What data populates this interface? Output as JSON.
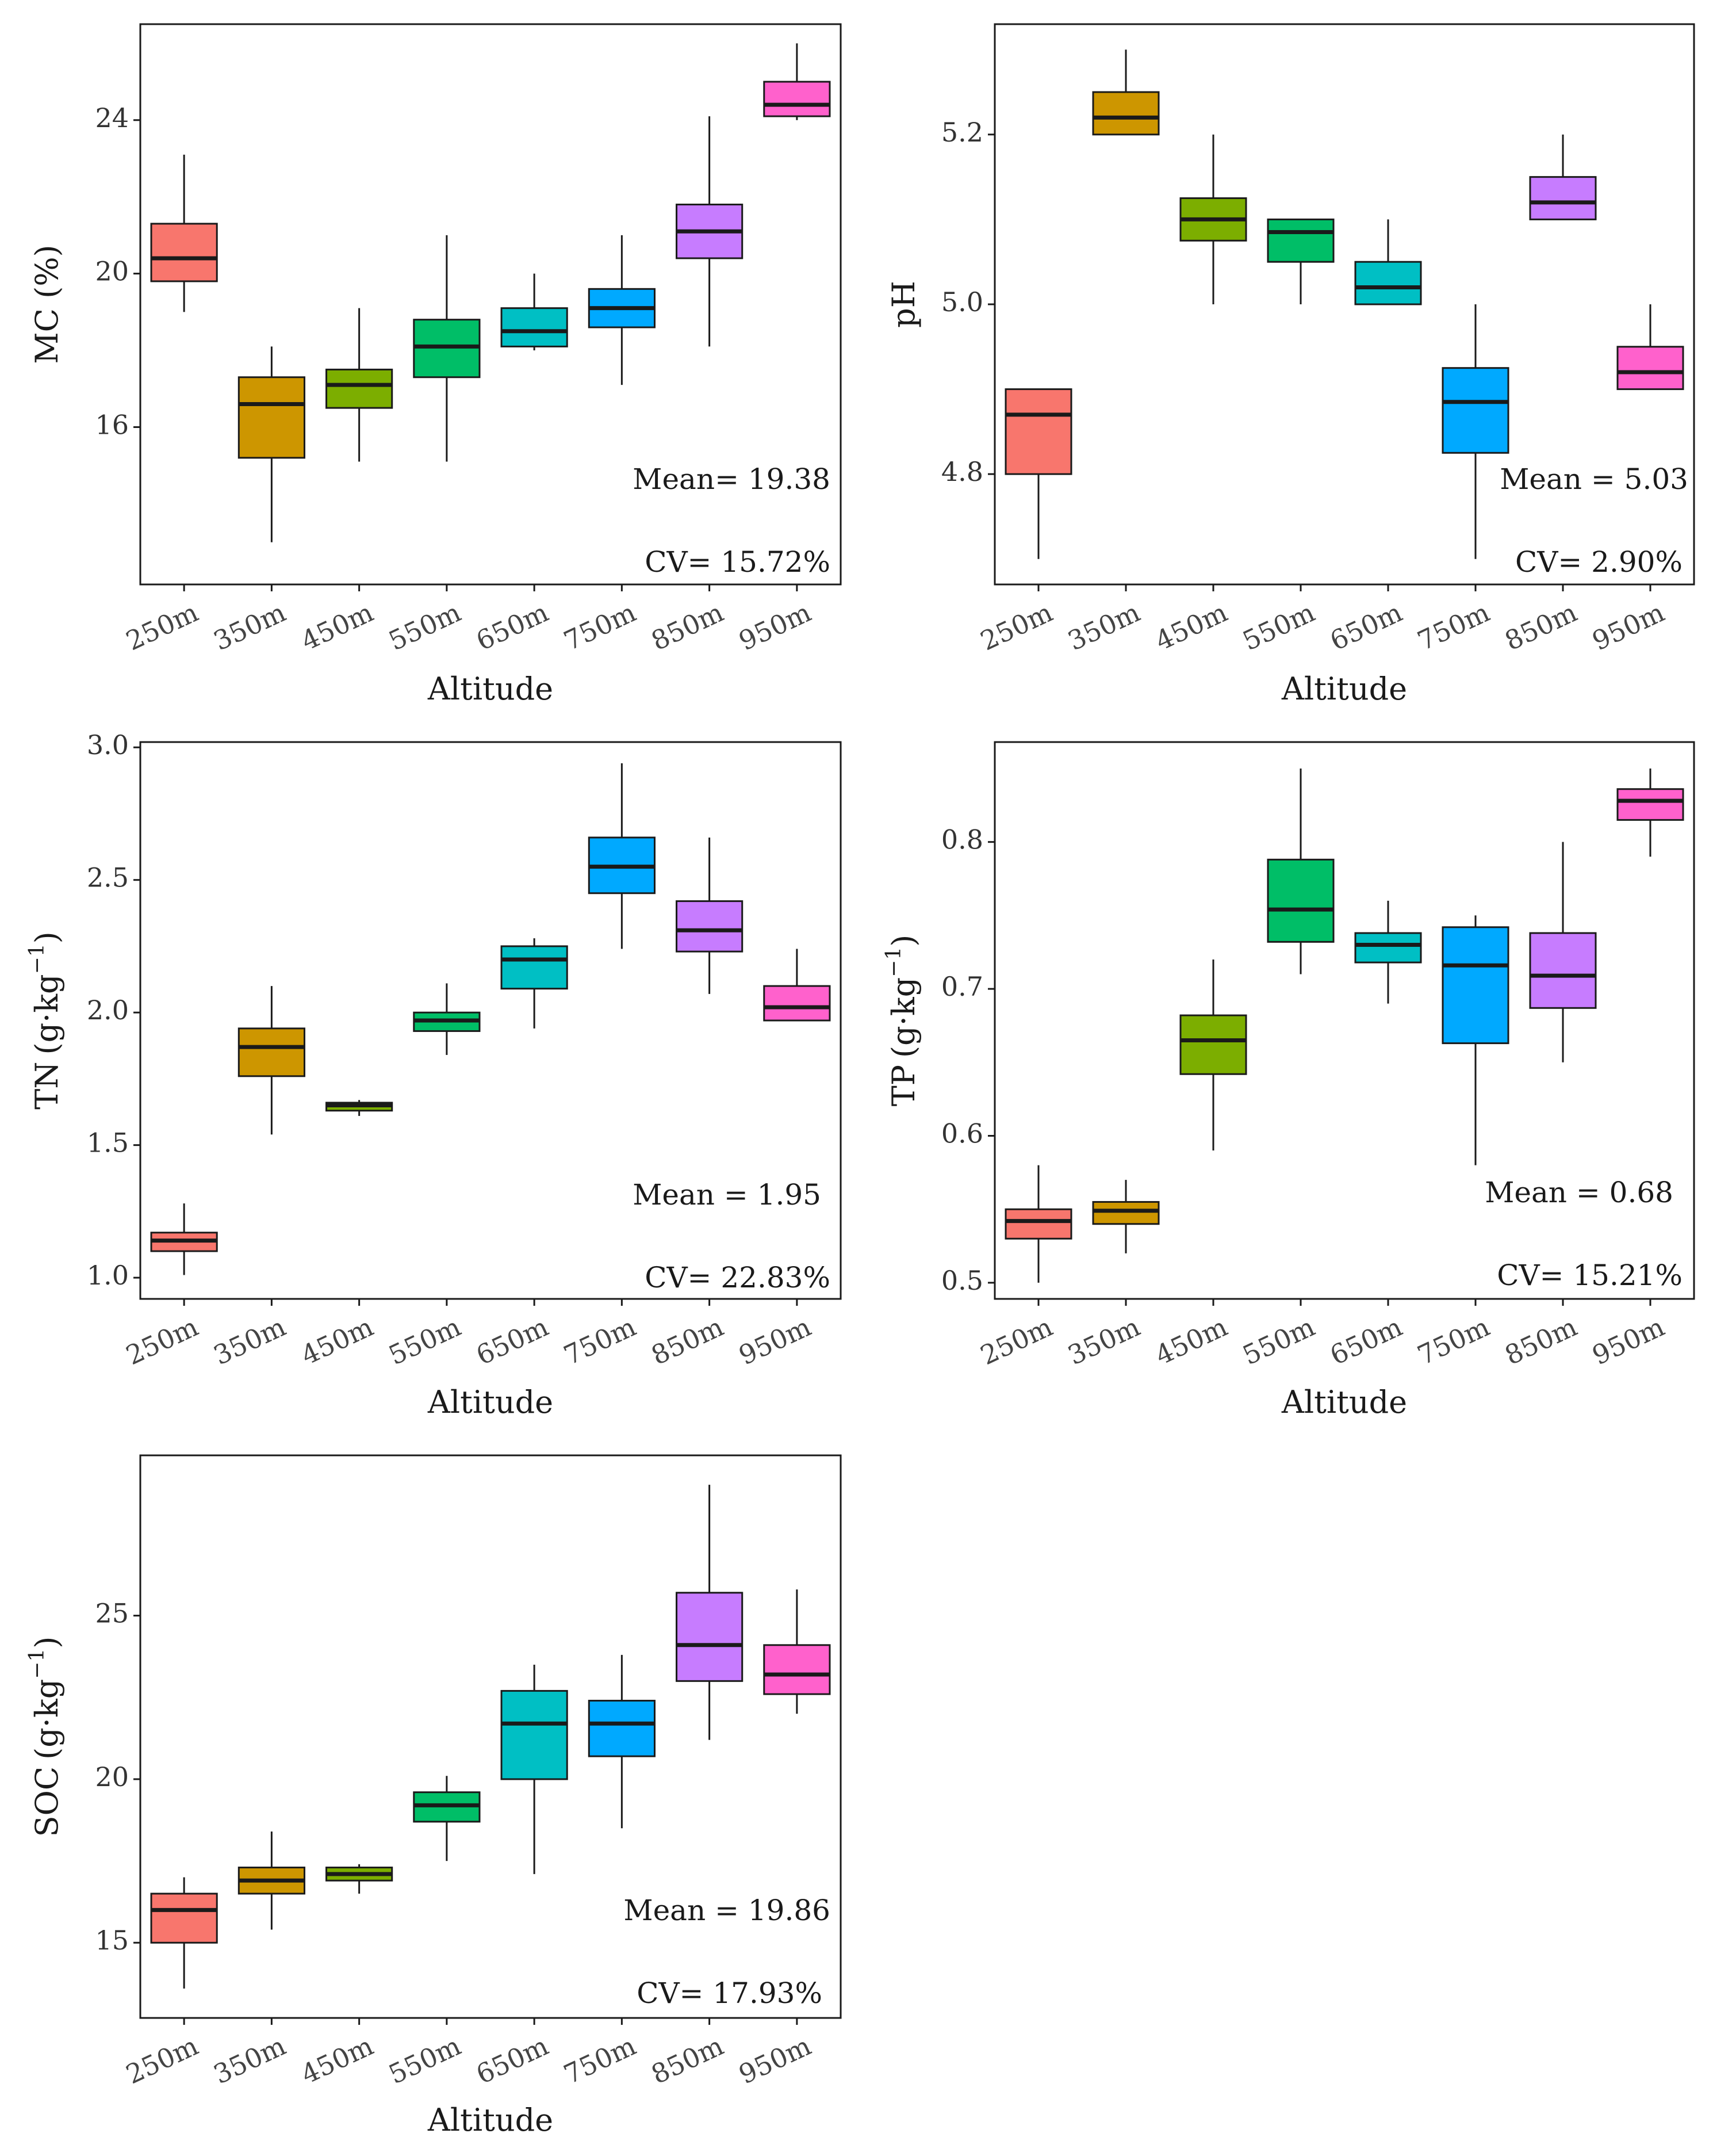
{
  "colors": [
    "#F8766D",
    "#CD9600",
    "#7CAE00",
    "#00BE67",
    "#00BFC4",
    "#00A9FF",
    "#C77CFF",
    "#FF61CC"
  ],
  "chart_data": [
    {
      "type": "box",
      "ylabel": "MC (%)",
      "ylabel_unit": "",
      "xlabel": "Altitude",
      "categories": [
        "250m",
        "350m",
        "450m",
        "550m",
        "650m",
        "750m",
        "850m",
        "950m"
      ],
      "ylim": [
        11.9,
        26.5
      ],
      "yticks": [
        16,
        20,
        24
      ],
      "ytick_labels": [
        "16",
        "20",
        "24"
      ],
      "boxes": [
        {
          "min": 19.0,
          "q1": 19.8,
          "median": 20.4,
          "q3": 21.3,
          "max": 23.1
        },
        {
          "min": 13.0,
          "q1": 15.2,
          "median": 16.6,
          "q3": 17.3,
          "max": 18.1
        },
        {
          "min": 15.1,
          "q1": 16.5,
          "median": 17.1,
          "q3": 17.5,
          "max": 19.1
        },
        {
          "min": 15.1,
          "q1": 17.3,
          "median": 18.1,
          "q3": 18.8,
          "max": 21.0
        },
        {
          "min": 18.0,
          "q1": 18.1,
          "median": 18.5,
          "q3": 19.1,
          "max": 20.0
        },
        {
          "min": 17.1,
          "q1": 18.6,
          "median": 19.1,
          "q3": 19.6,
          "max": 21.0
        },
        {
          "min": 18.1,
          "q1": 20.4,
          "median": 21.1,
          "q3": 21.8,
          "max": 24.1
        },
        {
          "min": 24.0,
          "q1": 24.1,
          "median": 24.4,
          "q3": 25.0,
          "max": 26.0
        }
      ],
      "annotations": {
        "mean": "Mean= 19.38",
        "cv": "CV= 15.72%"
      }
    },
    {
      "type": "box",
      "ylabel": "pH",
      "ylabel_unit": "",
      "xlabel": "Altitude",
      "categories": [
        "250m",
        "350m",
        "450m",
        "550m",
        "650m",
        "750m",
        "850m",
        "950m"
      ],
      "ylim": [
        4.67,
        5.33
      ],
      "yticks": [
        4.8,
        5.0,
        5.2
      ],
      "ytick_labels": [
        "4.8",
        "5.0",
        "5.2"
      ],
      "boxes": [
        {
          "min": 4.7,
          "q1": 4.8,
          "median": 4.87,
          "q3": 4.9,
          "max": 4.9
        },
        {
          "min": 5.2,
          "q1": 5.2,
          "median": 5.22,
          "q3": 5.25,
          "max": 5.3
        },
        {
          "min": 5.0,
          "q1": 5.075,
          "median": 5.1,
          "q3": 5.125,
          "max": 5.2
        },
        {
          "min": 5.0,
          "q1": 5.05,
          "median": 5.085,
          "q3": 5.1,
          "max": 5.1
        },
        {
          "min": 5.0,
          "q1": 5.0,
          "median": 5.02,
          "q3": 5.05,
          "max": 5.1
        },
        {
          "min": 4.7,
          "q1": 4.825,
          "median": 4.885,
          "q3": 4.925,
          "max": 5.0
        },
        {
          "min": 5.1,
          "q1": 5.1,
          "median": 5.12,
          "q3": 5.15,
          "max": 5.2
        },
        {
          "min": 4.9,
          "q1": 4.9,
          "median": 4.92,
          "q3": 4.95,
          "max": 5.0
        }
      ],
      "annotations": {
        "mean": "Mean = 5.03",
        "cv": "CV= 2.90%"
      }
    },
    {
      "type": "box",
      "ylabel": "TN",
      "ylabel_unit": "(g·kg",
      "ylabel_sup": "−1",
      "ylabel_close": ")",
      "xlabel": "Altitude",
      "categories": [
        "250m",
        "350m",
        "450m",
        "550m",
        "650m",
        "750m",
        "850m",
        "950m"
      ],
      "ylim": [
        0.92,
        3.02
      ],
      "yticks": [
        1.0,
        1.5,
        2.0,
        2.5,
        3.0
      ],
      "ytick_labels": [
        "1.0",
        "1.5",
        "2.0",
        "2.5",
        "3.0"
      ],
      "boxes": [
        {
          "min": 1.01,
          "q1": 1.1,
          "median": 1.14,
          "q3": 1.17,
          "max": 1.28
        },
        {
          "min": 1.54,
          "q1": 1.76,
          "median": 1.87,
          "q3": 1.94,
          "max": 2.1
        },
        {
          "min": 1.61,
          "q1": 1.63,
          "median": 1.65,
          "q3": 1.66,
          "max": 1.67
        },
        {
          "min": 1.84,
          "q1": 1.93,
          "median": 1.97,
          "q3": 2.0,
          "max": 2.11
        },
        {
          "min": 1.94,
          "q1": 2.09,
          "median": 2.2,
          "q3": 2.25,
          "max": 2.28
        },
        {
          "min": 2.24,
          "q1": 2.45,
          "median": 2.55,
          "q3": 2.66,
          "max": 2.94
        },
        {
          "min": 2.07,
          "q1": 2.23,
          "median": 2.31,
          "q3": 2.42,
          "max": 2.66
        },
        {
          "min": 1.97,
          "q1": 1.97,
          "median": 2.02,
          "q3": 2.1,
          "max": 2.24
        }
      ],
      "annotations": {
        "mean": "Mean = 1.95",
        "cv": "CV= 22.83%"
      }
    },
    {
      "type": "box",
      "ylabel": "TP",
      "ylabel_unit": "(g·kg",
      "ylabel_sup": "−1",
      "ylabel_close": ")",
      "xlabel": "Altitude",
      "categories": [
        "250m",
        "350m",
        "450m",
        "550m",
        "650m",
        "750m",
        "850m",
        "950m"
      ],
      "ylim": [
        0.489,
        0.868
      ],
      "yticks": [
        0.5,
        0.6,
        0.7,
        0.8
      ],
      "ytick_labels": [
        "0.5",
        "0.6",
        "0.7",
        "0.8"
      ],
      "boxes": [
        {
          "min": 0.5,
          "q1": 0.53,
          "median": 0.542,
          "q3": 0.55,
          "max": 0.58
        },
        {
          "min": 0.52,
          "q1": 0.54,
          "median": 0.549,
          "q3": 0.555,
          "max": 0.57
        },
        {
          "min": 0.59,
          "q1": 0.642,
          "median": 0.665,
          "q3": 0.682,
          "max": 0.72
        },
        {
          "min": 0.71,
          "q1": 0.732,
          "median": 0.754,
          "q3": 0.788,
          "max": 0.85
        },
        {
          "min": 0.69,
          "q1": 0.718,
          "median": 0.73,
          "q3": 0.738,
          "max": 0.76
        },
        {
          "min": 0.58,
          "q1": 0.663,
          "median": 0.716,
          "q3": 0.742,
          "max": 0.75
        },
        {
          "min": 0.65,
          "q1": 0.687,
          "median": 0.709,
          "q3": 0.738,
          "max": 0.8
        },
        {
          "min": 0.79,
          "q1": 0.815,
          "median": 0.828,
          "q3": 0.836,
          "max": 0.85
        }
      ],
      "annotations": {
        "mean": "Mean = 0.68",
        "cv": "CV= 15.21%"
      }
    },
    {
      "type": "box",
      "ylabel": "SOC",
      "ylabel_unit": "(g·kg",
      "ylabel_sup": "−1",
      "ylabel_close": ")",
      "xlabel": "Altitude",
      "categories": [
        "250m",
        "350m",
        "450m",
        "550m",
        "650m",
        "750m",
        "850m",
        "950m"
      ],
      "ylim": [
        12.7,
        29.9
      ],
      "yticks": [
        15,
        20,
        25
      ],
      "ytick_labels": [
        "15",
        "20",
        "25"
      ],
      "boxes": [
        {
          "min": 13.6,
          "q1": 15.0,
          "median": 16.0,
          "q3": 16.5,
          "max": 17.0
        },
        {
          "min": 15.4,
          "q1": 16.5,
          "median": 16.9,
          "q3": 17.3,
          "max": 18.4
        },
        {
          "min": 16.5,
          "q1": 16.9,
          "median": 17.1,
          "q3": 17.3,
          "max": 17.4
        },
        {
          "min": 17.5,
          "q1": 18.7,
          "median": 19.2,
          "q3": 19.6,
          "max": 20.1
        },
        {
          "min": 17.1,
          "q1": 20.0,
          "median": 21.7,
          "q3": 22.7,
          "max": 23.5
        },
        {
          "min": 18.5,
          "q1": 20.7,
          "median": 21.7,
          "q3": 22.4,
          "max": 23.8
        },
        {
          "min": 21.2,
          "q1": 23.0,
          "median": 24.1,
          "q3": 25.7,
          "max": 29.0
        },
        {
          "min": 22.0,
          "q1": 22.6,
          "median": 23.2,
          "q3": 24.1,
          "max": 25.8
        }
      ],
      "annotations": {
        "mean": "Mean = 19.86",
        "cv": "CV= 17.93%"
      }
    }
  ]
}
